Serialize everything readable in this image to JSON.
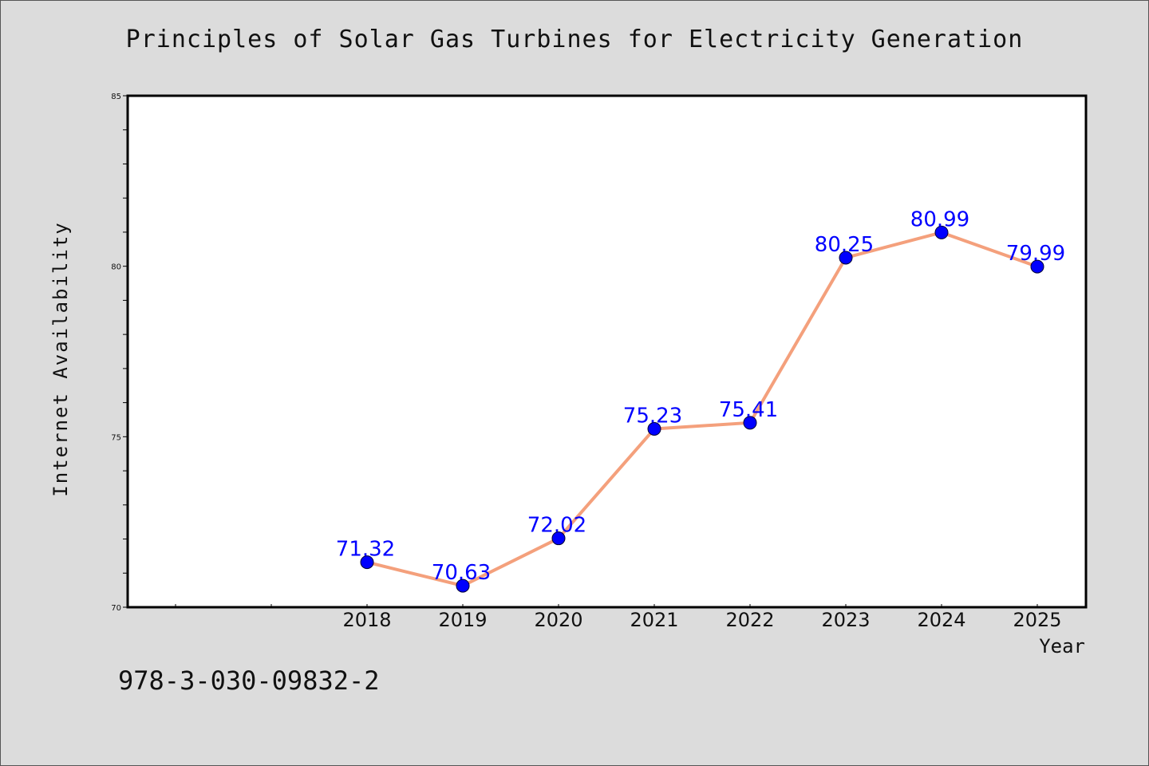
{
  "chart_data": {
    "type": "line",
    "title": "Principles of Solar Gas Turbines for Electricity Generation",
    "xlabel": "Year",
    "ylabel": "Internet Availability",
    "x": [
      "2018",
      "2019",
      "2020",
      "2021",
      "2022",
      "2023",
      "2024",
      "2025"
    ],
    "series": [
      {
        "values": [
          71.32,
          70.63,
          72.02,
          75.23,
          75.41,
          80.25,
          80.99,
          79.99
        ]
      }
    ],
    "data_labels": [
      "71.32",
      "70.63",
      "72.02",
      "75.23",
      "75.41",
      "80.25",
      "80.99",
      "79.99"
    ],
    "ylim": [
      70,
      85
    ],
    "y_ticks": [
      "70",
      "75",
      "80",
      "85"
    ],
    "grid": false,
    "line_color": "#f4a07c",
    "marker_color": "#0000ff",
    "label_color": "#0000ff",
    "background_color": "#dcdcdc"
  },
  "footer": {
    "isbn": "978-3-030-09832-2"
  }
}
